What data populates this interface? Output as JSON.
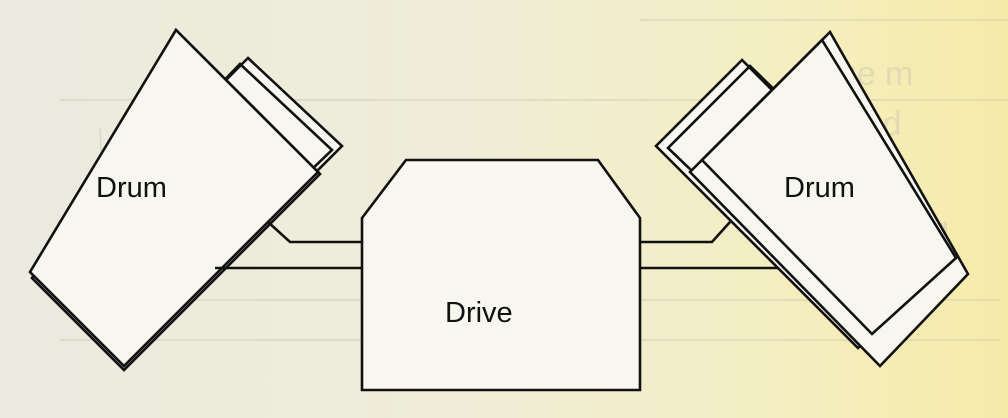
{
  "diagram": {
    "left_drum_label": "Drum",
    "drive_label": "Drive",
    "right_drum_label": "Drum"
  },
  "colors": {
    "line": "#111111",
    "paper": "#f1efd7",
    "paper_tint": "#f6eba9"
  }
}
